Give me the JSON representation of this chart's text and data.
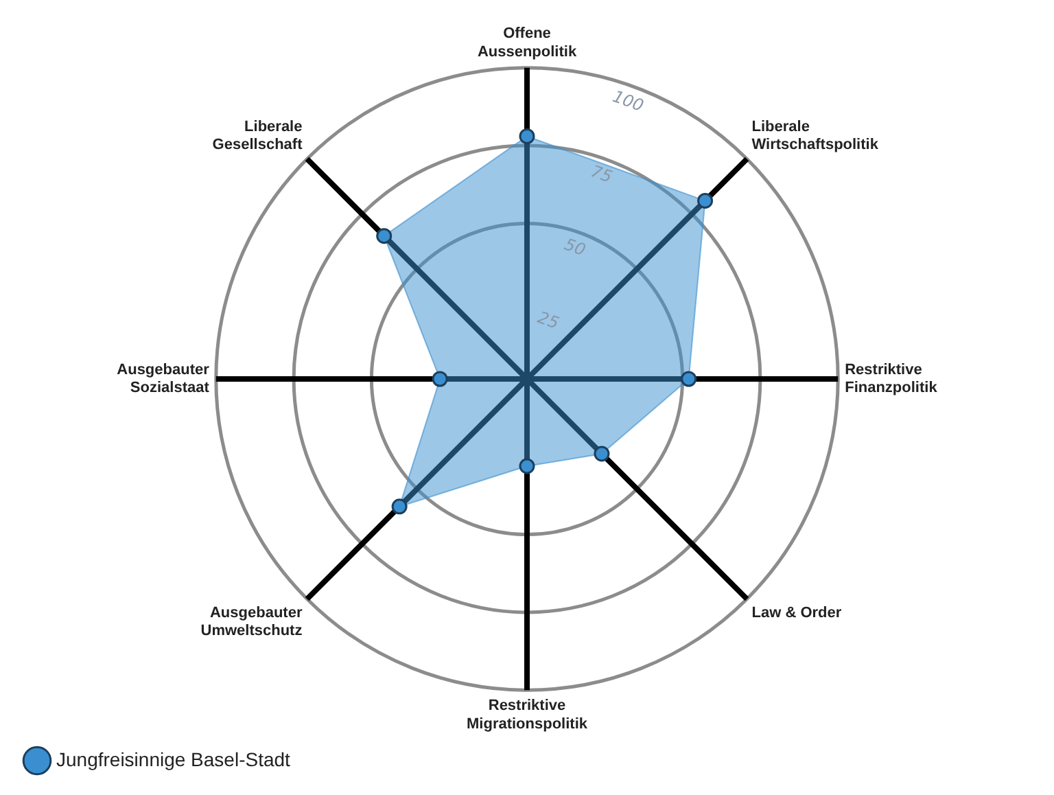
{
  "chart_data": {
    "type": "radar",
    "categories": [
      "Offene Aussenpolitik",
      "Liberale Wirtschaftspolitik",
      "Restriktive Finanzpolitik",
      "Law & Order",
      "Restriktive Migrationspolitik",
      "Ausgebauter Umweltschutz",
      "Ausgebauter Sozialstaat",
      "Liberale Gesellschaft"
    ],
    "series": [
      {
        "name": "Jungfreisinnige Basel-Stadt",
        "color": "#3a8fd0",
        "values": [
          78,
          81,
          52,
          34,
          28,
          58,
          28,
          65
        ]
      }
    ],
    "ylim": [
      0,
      100
    ],
    "yticks": [
      25,
      50,
      75,
      100
    ],
    "grid": true,
    "legend": "bottom left",
    "marker": "circle"
  }
}
